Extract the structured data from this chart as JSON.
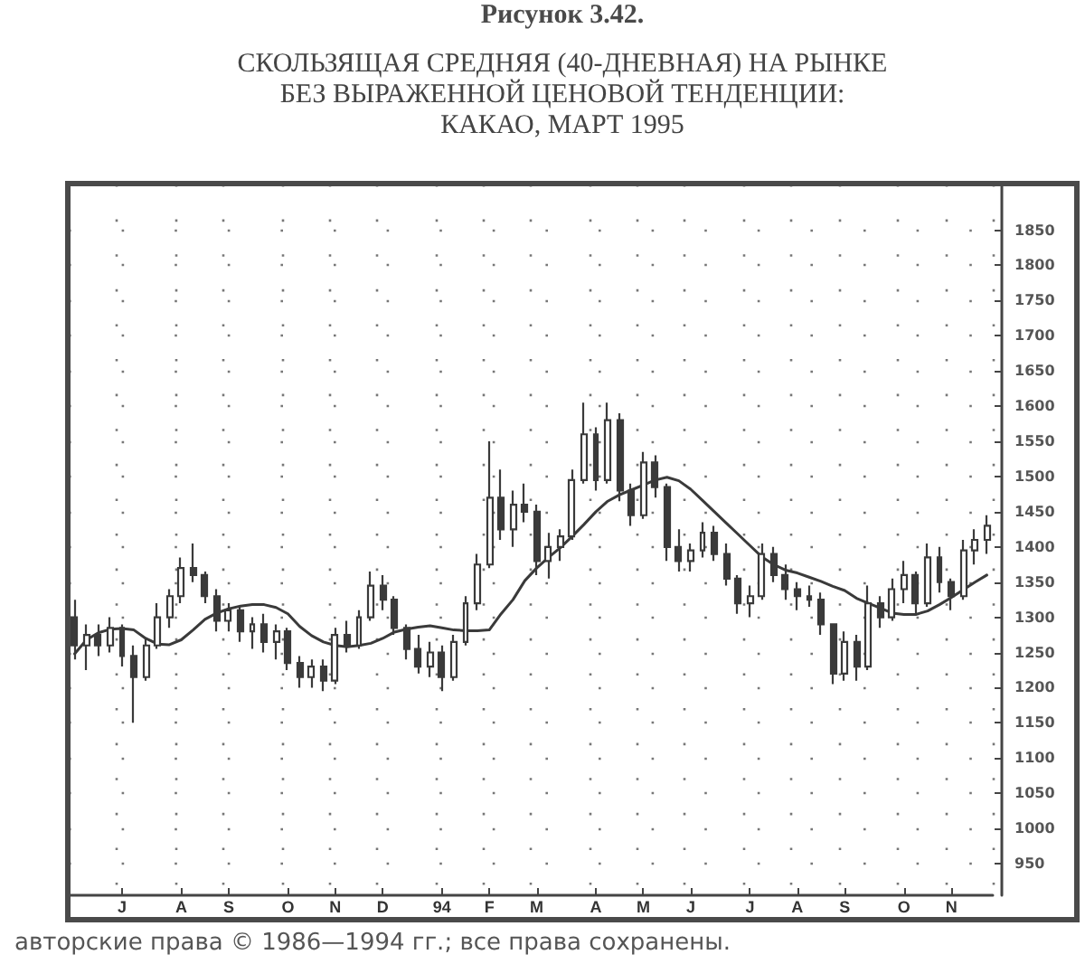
{
  "chart_data": {
    "type": "candlestick",
    "title": "Рисунок 3.42.",
    "subtitle": "СКОЛЬЗЯЩАЯ СРЕДНЯЯ (40-ДНЕВНАЯ) НА РЫНКЕ\nБЕЗ ВЫРАЖЕННОЙ ЦЕНОВОЙ ТЕНДЕНЦИИ:\nКАКАО, МАРТ 1995",
    "annotations": [
      "авторские права © 1986—1994 гг.; все права сохранены."
    ],
    "categories": [
      null,
      null,
      null,
      null,
      "J",
      null,
      null,
      null,
      null,
      "A",
      null,
      null,
      null,
      "S",
      null,
      null,
      null,
      null,
      "O",
      null,
      null,
      null,
      "N",
      null,
      null,
      null,
      "D",
      null,
      null,
      null,
      null,
      "94",
      null,
      null,
      null,
      "F",
      null,
      null,
      null,
      "M",
      null,
      null,
      null,
      null,
      "A",
      null,
      null,
      null,
      "M",
      null,
      null,
      null,
      "J",
      null,
      null,
      null,
      null,
      "J",
      null,
      null,
      null,
      "A",
      null,
      null,
      null,
      "S",
      null,
      null,
      null,
      null,
      "O",
      null,
      null,
      null,
      "N",
      null,
      null,
      null
    ],
    "ohlc": [
      [
        1300,
        1325,
        1240,
        1260
      ],
      [
        1260,
        1290,
        1225,
        1275
      ],
      [
        1275,
        1290,
        1245,
        1260
      ],
      [
        1260,
        1300,
        1250,
        1285
      ],
      [
        1285,
        1290,
        1230,
        1245
      ],
      [
        1245,
        1260,
        1150,
        1215
      ],
      [
        1215,
        1270,
        1210,
        1260
      ],
      [
        1260,
        1320,
        1255,
        1300
      ],
      [
        1300,
        1340,
        1285,
        1330
      ],
      [
        1330,
        1385,
        1320,
        1370
      ],
      [
        1370,
        1405,
        1350,
        1360
      ],
      [
        1360,
        1365,
        1320,
        1330
      ],
      [
        1330,
        1340,
        1280,
        1295
      ],
      [
        1295,
        1320,
        1280,
        1310
      ],
      [
        1310,
        1315,
        1265,
        1280
      ],
      [
        1280,
        1300,
        1255,
        1290
      ],
      [
        1290,
        1305,
        1250,
        1265
      ],
      [
        1265,
        1290,
        1240,
        1280
      ],
      [
        1280,
        1285,
        1225,
        1235
      ],
      [
        1235,
        1245,
        1200,
        1215
      ],
      [
        1215,
        1240,
        1200,
        1230
      ],
      [
        1230,
        1240,
        1195,
        1210
      ],
      [
        1210,
        1285,
        1205,
        1275
      ],
      [
        1275,
        1295,
        1250,
        1260
      ],
      [
        1260,
        1310,
        1255,
        1300
      ],
      [
        1300,
        1365,
        1295,
        1345
      ],
      [
        1345,
        1360,
        1310,
        1325
      ],
      [
        1325,
        1330,
        1275,
        1285
      ],
      [
        1285,
        1290,
        1240,
        1255
      ],
      [
        1255,
        1275,
        1220,
        1230
      ],
      [
        1230,
        1265,
        1215,
        1250
      ],
      [
        1250,
        1260,
        1195,
        1215
      ],
      [
        1215,
        1275,
        1210,
        1265
      ],
      [
        1265,
        1330,
        1260,
        1320
      ],
      [
        1320,
        1390,
        1310,
        1375
      ],
      [
        1375,
        1550,
        1370,
        1470
      ],
      [
        1470,
        1510,
        1410,
        1425
      ],
      [
        1425,
        1480,
        1400,
        1460
      ],
      [
        1460,
        1490,
        1435,
        1450
      ],
      [
        1450,
        1460,
        1360,
        1380
      ],
      [
        1380,
        1420,
        1355,
        1400
      ],
      [
        1400,
        1425,
        1380,
        1415
      ],
      [
        1415,
        1510,
        1410,
        1495
      ],
      [
        1495,
        1605,
        1490,
        1560
      ],
      [
        1560,
        1570,
        1480,
        1495
      ],
      [
        1495,
        1605,
        1490,
        1580
      ],
      [
        1580,
        1590,
        1465,
        1480
      ],
      [
        1480,
        1490,
        1430,
        1445
      ],
      [
        1445,
        1535,
        1440,
        1520
      ],
      [
        1520,
        1530,
        1470,
        1485
      ],
      [
        1485,
        1490,
        1380,
        1400
      ],
      [
        1400,
        1425,
        1365,
        1380
      ],
      [
        1380,
        1405,
        1365,
        1395
      ],
      [
        1395,
        1435,
        1385,
        1420
      ],
      [
        1420,
        1430,
        1380,
        1390
      ],
      [
        1390,
        1405,
        1345,
        1355
      ],
      [
        1355,
        1360,
        1305,
        1320
      ],
      [
        1320,
        1345,
        1300,
        1330
      ],
      [
        1330,
        1405,
        1325,
        1390
      ],
      [
        1390,
        1400,
        1350,
        1360
      ],
      [
        1360,
        1375,
        1325,
        1340
      ],
      [
        1340,
        1350,
        1310,
        1330
      ],
      [
        1330,
        1345,
        1315,
        1325
      ],
      [
        1325,
        1335,
        1275,
        1290
      ],
      [
        1290,
        1290,
        1205,
        1220
      ],
      [
        1220,
        1280,
        1210,
        1265
      ],
      [
        1265,
        1275,
        1210,
        1230
      ],
      [
        1230,
        1345,
        1225,
        1320
      ],
      [
        1320,
        1330,
        1285,
        1300
      ],
      [
        1300,
        1355,
        1295,
        1340
      ],
      [
        1340,
        1380,
        1320,
        1360
      ],
      [
        1360,
        1365,
        1305,
        1320
      ],
      [
        1320,
        1405,
        1315,
        1385
      ],
      [
        1385,
        1400,
        1335,
        1350
      ],
      [
        1350,
        1355,
        1310,
        1330
      ],
      [
        1330,
        1410,
        1325,
        1395
      ],
      [
        1395,
        1425,
        1375,
        1410
      ],
      [
        1410,
        1445,
        1390,
        1430
      ]
    ],
    "color": "#3a3a3a",
    "series": [
      {
        "type": "line",
        "color": "#3a3a3a",
        "values": [
          1248,
          1268,
          1278,
          1283,
          1284,
          1282,
          1270,
          1262,
          1261,
          1268,
          1282,
          1297,
          1306,
          1312,
          1316,
          1318,
          1318,
          1314,
          1305,
          1287,
          1274,
          1265,
          1260,
          1258,
          1260,
          1263,
          1270,
          1279,
          1283,
          1286,
          1288,
          1285,
          1282,
          1281,
          1281,
          1282,
          1305,
          1325,
          1352,
          1370,
          1385,
          1399,
          1415,
          1432,
          1450,
          1465,
          1474,
          1481,
          1488,
          1495,
          1499,
          1494,
          1482,
          1466,
          1450,
          1434,
          1418,
          1402,
          1386,
          1375,
          1367,
          1363,
          1357,
          1351,
          1344,
          1338,
          1327,
          1320,
          1313,
          1306,
          1304,
          1304,
          1309,
          1318,
          1328,
          1339,
          1350,
          1360
        ]
      }
    ],
    "ylim": [
      905,
      1915
    ],
    "yticks": [
      950,
      1000,
      1050,
      1100,
      1150,
      1200,
      1250,
      1300,
      1350,
      1400,
      1450,
      1500,
      1550,
      1600,
      1650,
      1700,
      1750,
      1800,
      1850
    ],
    "grid": true
  }
}
